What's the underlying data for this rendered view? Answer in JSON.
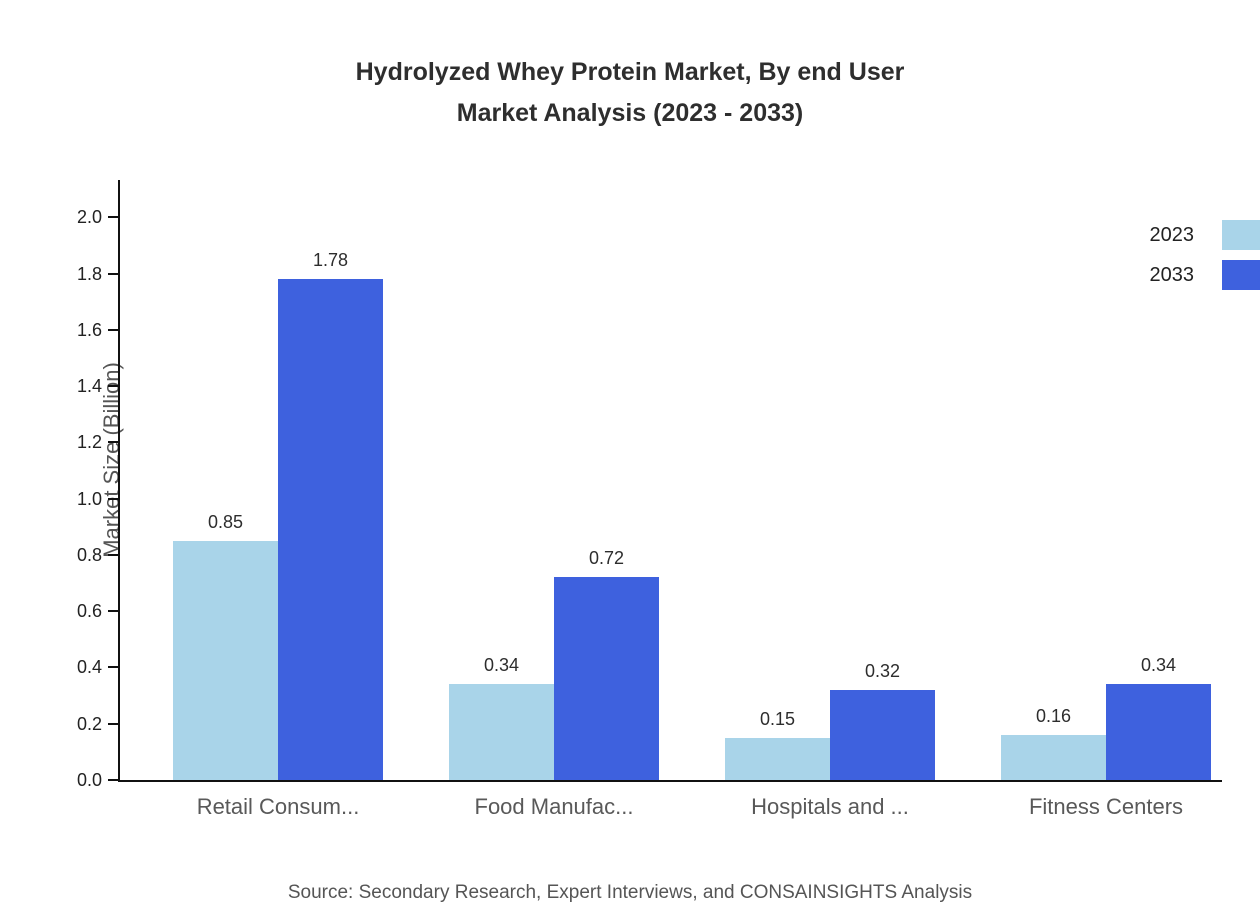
{
  "title_line1": "Hydrolyzed Whey Protein Market, By end User",
  "title_line2": "Market Analysis (2023 - 2033)",
  "source": "Source: Secondary Research, Expert Interviews, and CONSAINSIGHTS Analysis",
  "colors": {
    "series_2023": "#A9D4E9",
    "series_2033": "#3E61DE",
    "axis": "#111111",
    "category_label": "#595959",
    "value_label": "#2D2D2D"
  },
  "chart_data": {
    "type": "bar",
    "title": "Hydrolyzed Whey Protein Market, By end User Market Analysis (2023 - 2033)",
    "categories": [
      "Retail Consum...",
      "Food Manufac...",
      "Hospitals and ...",
      "Fitness Centers"
    ],
    "series": [
      {
        "name": "2023",
        "color": "#A9D4E9",
        "values": [
          0.85,
          0.34,
          0.15,
          0.16
        ]
      },
      {
        "name": "2033",
        "color": "#3E61DE",
        "values": [
          1.78,
          0.72,
          0.32,
          0.34
        ]
      }
    ],
    "xlabel": "",
    "ylabel": "Market Size (Billion)",
    "ylim": [
      0,
      2.14
    ],
    "yticks": [
      0.0,
      0.2,
      0.4,
      0.6,
      0.8,
      1.0,
      1.2,
      1.4,
      1.6,
      1.8,
      2.0
    ],
    "grid": false,
    "legend_position": "top-right"
  }
}
